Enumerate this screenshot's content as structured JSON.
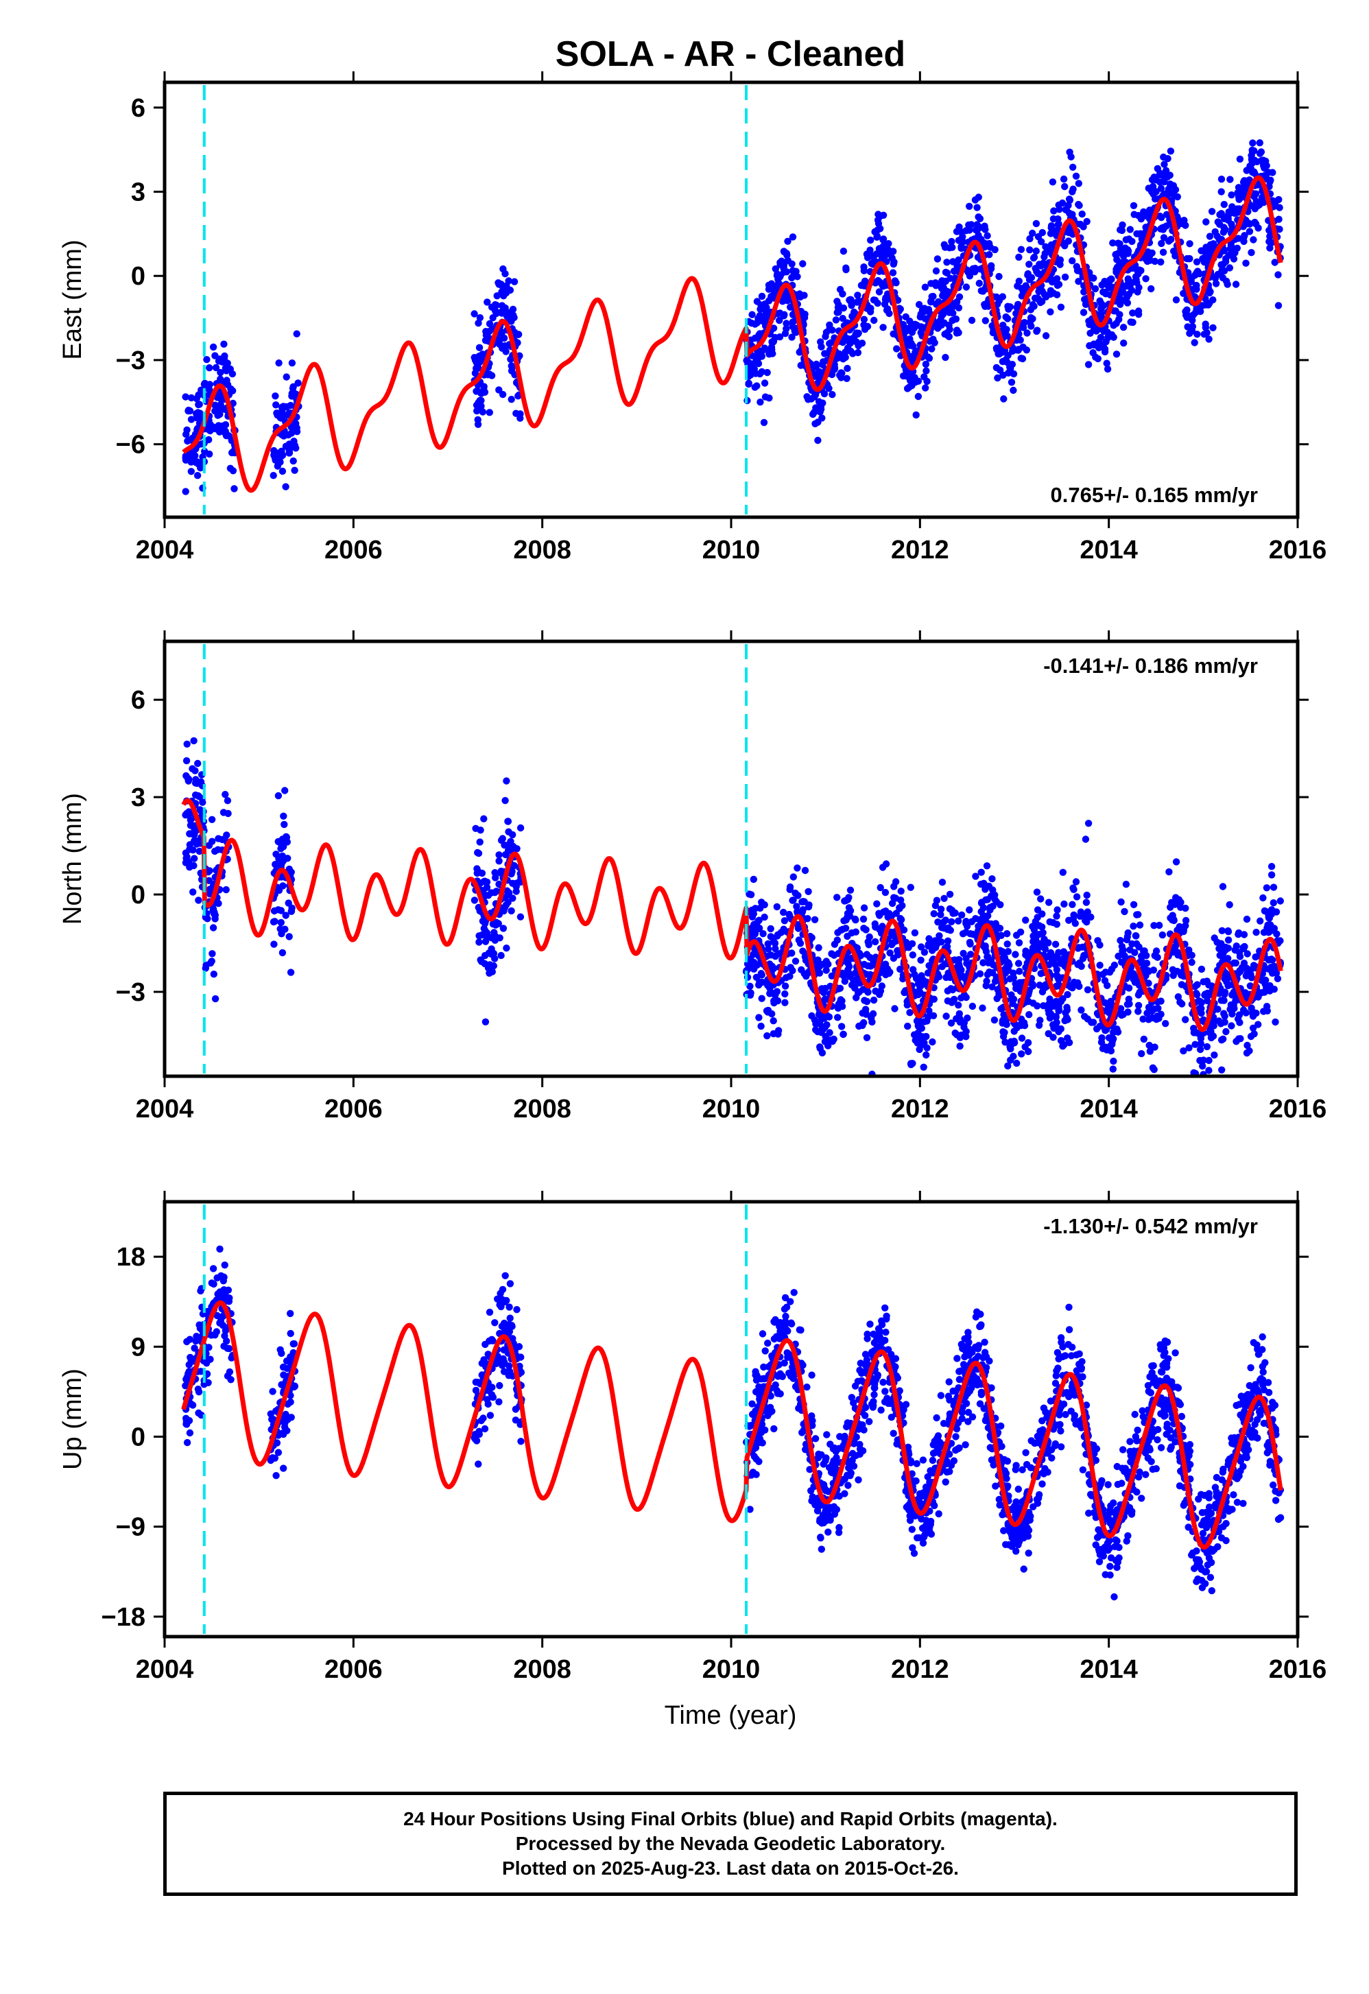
{
  "title": "SOLA  - AR - Cleaned",
  "xlabel": "Time (year)",
  "footer": {
    "line1": "24 Hour Positions Using Final Orbits (blue) and Rapid Orbits (magenta).",
    "line2": "Processed by the Nevada Geodetic Laboratory.",
    "line3": "Plotted on 2025-Aug-23. Last data on 2015-Oct-26."
  },
  "colors": {
    "points": "#0000ff",
    "model": "#ff0000",
    "breaks": "#00e5ee",
    "frame": "#000000"
  },
  "chart_data": [
    {
      "type": "scatter",
      "component": "East",
      "ylabel": "East (mm)",
      "rate_label": "0.765+/- 0.165 mm/yr",
      "xlim": [
        2004.0,
        2016.0
      ],
      "ylim": [
        -8.6,
        6.9
      ],
      "xticks": [
        2004,
        2006,
        2008,
        2010,
        2012,
        2014,
        2016
      ],
      "yticks": [
        -6,
        -3,
        0,
        3,
        6
      ],
      "ytick_labels": [
        "−6",
        "−3",
        "0",
        "3",
        "6"
      ],
      "break_lines": [
        2004.42,
        2010.16
      ],
      "model_params": {
        "intercept_mm": -6.2,
        "rate_mm_per_yr": 0.765,
        "annual_amp_mm": 1.6,
        "annual_phase_yr": 0.25,
        "semiannual_amp_mm": 0.7,
        "semiannual_phase_yr": 0.0,
        "offset_at_2010_16_mm": -1.0
      },
      "data_spans": [
        [
          2004.22,
          2004.75
        ],
        [
          2005.15,
          2005.42
        ],
        [
          2007.28,
          2007.78
        ],
        [
          2010.16,
          2015.82
        ]
      ],
      "scatter_sigma_mm": 0.9,
      "model_t_range": [
        2004.2,
        2015.82
      ]
    },
    {
      "type": "scatter",
      "component": "North",
      "ylabel": "North (mm)",
      "rate_label": "-0.141+/- 0.186 mm/yr",
      "xlim": [
        2004.0,
        2016.0
      ],
      "ylim": [
        -5.6,
        7.8
      ],
      "xticks": [
        2004,
        2006,
        2008,
        2010,
        2012,
        2014,
        2016
      ],
      "yticks": [
        -3,
        0,
        3,
        6
      ],
      "ytick_labels": [
        "−3",
        "0",
        "3",
        "6"
      ],
      "break_lines": [
        2004.42,
        2010.16
      ],
      "model_params": {
        "intercept_mm": 2.3,
        "rate_mm_per_yr": -0.141,
        "annual_amp_mm": 0.6,
        "annual_phase_yr": 0.35,
        "semiannual_amp_mm": 1.0,
        "semiannual_phase_yr": 0.1,
        "offset_at_2010_16_mm": -1.5,
        "offset_at_2004_42_mm": -2.0
      },
      "data_spans": [
        [
          2004.22,
          2004.68
        ],
        [
          2005.15,
          2005.35
        ],
        [
          2007.28,
          2007.78
        ],
        [
          2010.16,
          2015.82
        ]
      ],
      "scatter_sigma_mm": 1.0,
      "model_t_range": [
        2004.2,
        2015.82
      ]
    },
    {
      "type": "scatter",
      "component": "Up",
      "ylabel": "Up (mm)",
      "rate_label": "-1.130+/- 0.542 mm/yr",
      "xlim": [
        2004.0,
        2016.0
      ],
      "ylim": [
        -20.0,
        23.5
      ],
      "xticks": [
        2004,
        2006,
        2008,
        2010,
        2012,
        2014,
        2016
      ],
      "yticks": [
        -18,
        -9,
        0,
        9,
        18
      ],
      "ytick_labels": [
        "−18",
        "−9",
        "0",
        "9",
        "18"
      ],
      "break_lines": [
        2004.42,
        2010.16
      ],
      "model_params": {
        "intercept_mm": 6.0,
        "rate_mm_per_yr": -1.13,
        "annual_amp_mm": 7.5,
        "annual_phase_yr": 0.3,
        "semiannual_amp_mm": 1.2,
        "semiannual_phase_yr": 0.05,
        "offset_at_2010_16_mm": 3.0
      },
      "data_spans": [
        [
          2004.22,
          2004.72
        ],
        [
          2005.12,
          2005.38
        ],
        [
          2007.28,
          2007.78
        ],
        [
          2010.16,
          2015.82
        ]
      ],
      "scatter_sigma_mm": 2.4,
      "model_t_range": [
        2004.2,
        2015.82
      ]
    }
  ]
}
